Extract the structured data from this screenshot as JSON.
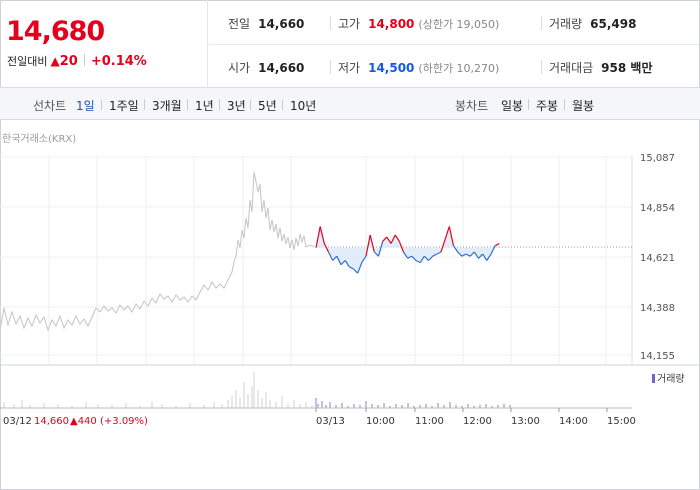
{
  "summary": {
    "price": "14,680",
    "change_label": "전일대비",
    "change_amount": "20",
    "change_percent": "+0.14%",
    "prev_close": {
      "label": "전일",
      "value": "14,660"
    },
    "open": {
      "label": "시가",
      "value": "14,660"
    },
    "high": {
      "label": "고가",
      "value": "14,800",
      "limit_label": "(상한가 19,050)"
    },
    "low": {
      "label": "저가",
      "value": "14,500",
      "limit_label": "(하한가 10,270)"
    },
    "volume": {
      "label": "거래량",
      "value": "65,498"
    },
    "trade_value": {
      "label": "거래대금",
      "value": "958 백만"
    }
  },
  "periodbar": {
    "line_label": "선차트",
    "line_periods": [
      "1일",
      "1주일",
      "3개월",
      "1년",
      "3년",
      "5년",
      "10년"
    ],
    "selected_line_period": "1일",
    "candle_label": "봉차트",
    "candle_periods": [
      "일봉",
      "주봉",
      "월봉"
    ]
  },
  "chart": {
    "source": "한국거래소(KRX)",
    "legend_volume": "거래량",
    "prev_day_label": "03/12",
    "prev_day_close": "14,660",
    "prev_day_change": "▲440",
    "prev_day_pct": "(+3.09%)",
    "up_color": "#e4001b",
    "down_color": "#2a6fd8"
  },
  "chart_data": {
    "type": "line",
    "title": "",
    "xlabel": "",
    "ylabel": "",
    "y_ticks": [
      "15,087",
      "14,854",
      "14,621",
      "14,388",
      "14,155"
    ],
    "ylim": [
      14155,
      15087
    ],
    "reference_price": 14660,
    "x_ticks": [
      "03/13",
      "10:00",
      "11:00",
      "12:00",
      "13:00",
      "14:00",
      "15:00"
    ],
    "series": [
      {
        "x": [
          "09:00",
          "09:05",
          "09:10",
          "09:15",
          "09:20",
          "09:25",
          "09:30",
          "09:35",
          "09:40",
          "09:45",
          "09:50",
          "09:55",
          "10:00",
          "10:05",
          "10:10",
          "10:15",
          "10:20",
          "10:25",
          "10:30",
          "10:35",
          "10:40",
          "10:45",
          "10:50",
          "10:55",
          "11:00",
          "11:05",
          "11:10",
          "11:15",
          "11:20",
          "11:25",
          "11:30",
          "11:35",
          "11:40",
          "11:45",
          "11:50",
          "11:55",
          "12:00",
          "12:05",
          "12:10",
          "12:15",
          "12:20",
          "12:25",
          "12:30",
          "12:35",
          "12:40"
        ],
        "values": [
          14660,
          14760,
          14680,
          14640,
          14600,
          14620,
          14580,
          14600,
          14570,
          14560,
          14540,
          14590,
          14620,
          14720,
          14640,
          14620,
          14690,
          14710,
          14680,
          14720,
          14690,
          14640,
          14610,
          14620,
          14600,
          14590,
          14620,
          14600,
          14620,
          14630,
          14640,
          14700,
          14760,
          14670,
          14640,
          14620,
          14630,
          14620,
          14640,
          14610,
          14630,
          14600,
          14630,
          14670,
          14680
        ]
      }
    ]
  }
}
